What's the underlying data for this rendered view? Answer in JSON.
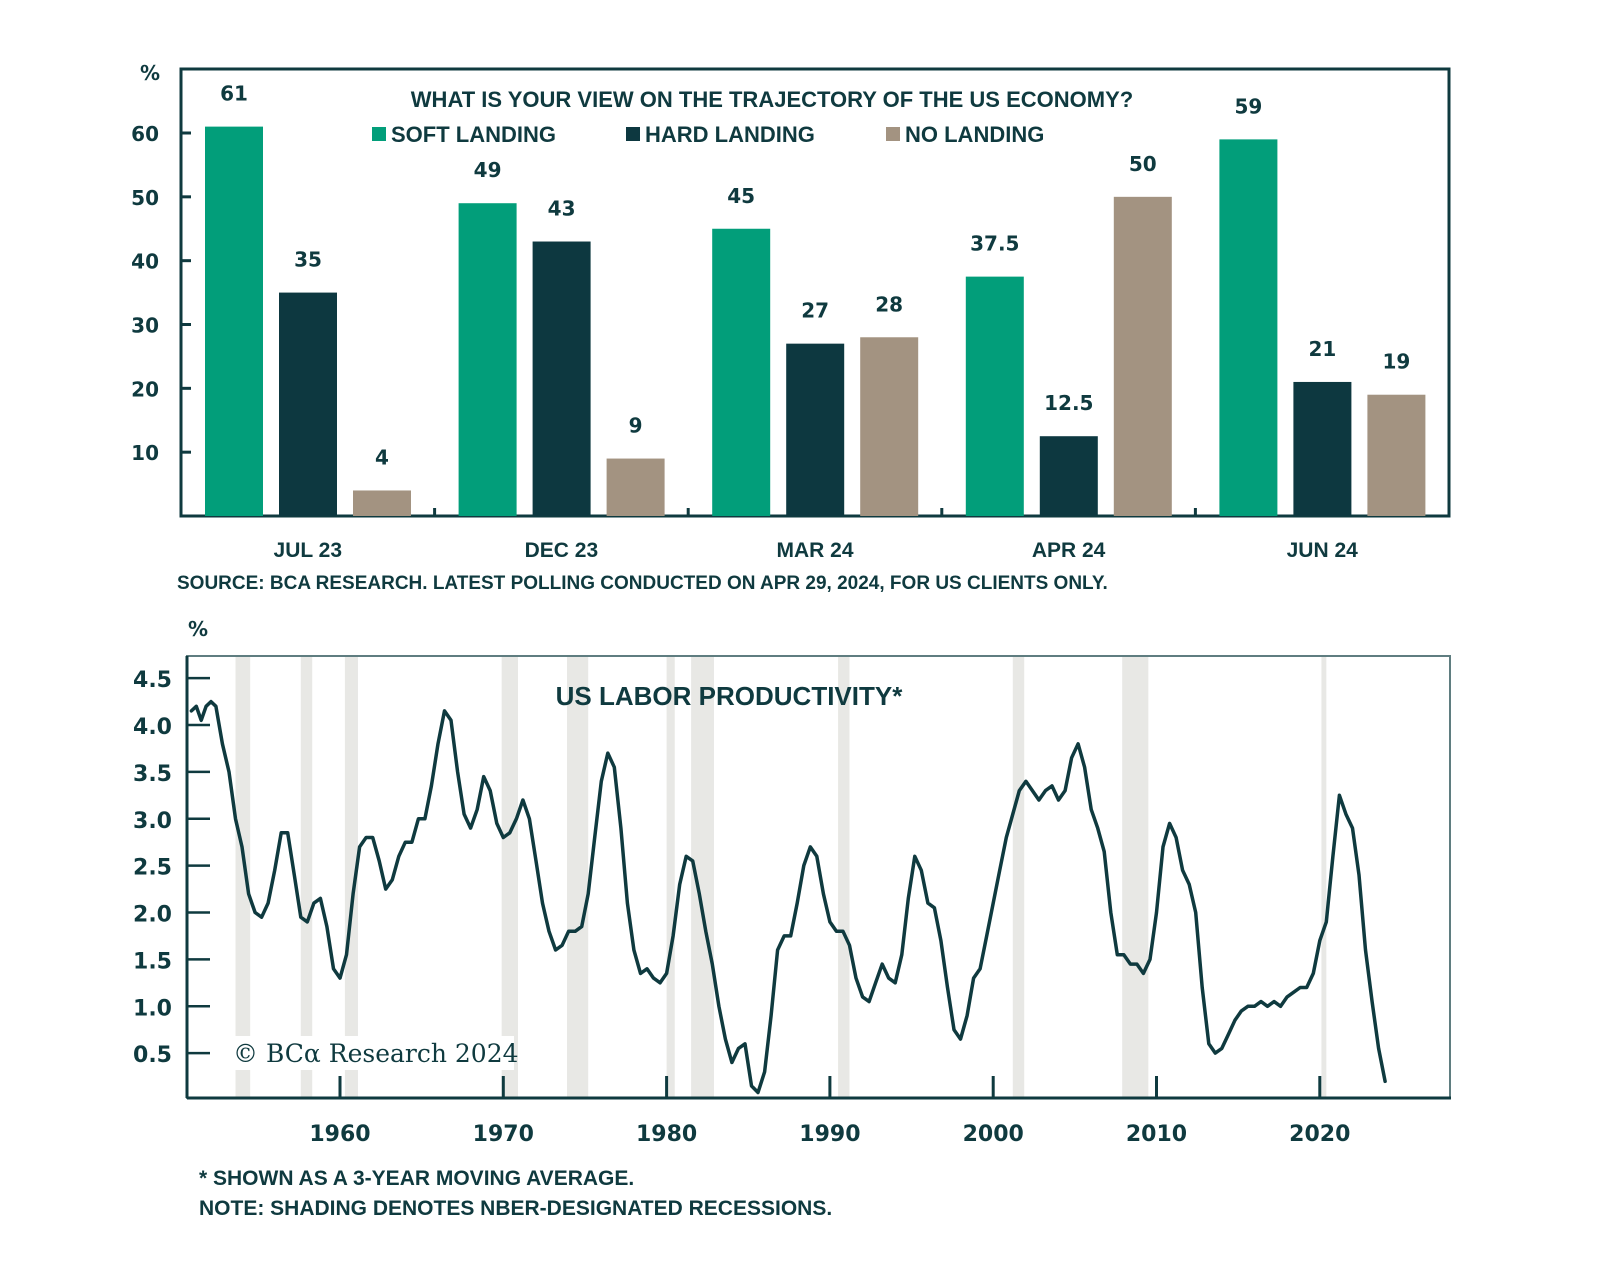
{
  "colors": {
    "soft": "#029e7a",
    "hard": "#0d3840",
    "no": "#a39381",
    "axis": "#0f3a3f",
    "line": "#0f3a3f",
    "recession": "#e8e8e5"
  },
  "chart_data": [
    {
      "type": "bar",
      "title": "WHAT IS YOUR VIEW ON THE TRAJECTORY OF THE US ECONOMY?",
      "ylabel": "%",
      "xlabel": "",
      "ylim": [
        0,
        70
      ],
      "yticks": [
        10,
        20,
        30,
        40,
        50,
        60
      ],
      "ytick_labels": [
        "10",
        "20",
        "30",
        "40",
        "50",
        "60"
      ],
      "categories": [
        "JUL 23",
        "DEC 23",
        "MAR 24",
        "APR 24",
        "JUN 24"
      ],
      "legend": [
        "SOFT LANDING",
        "HARD LANDING",
        "NO LANDING"
      ],
      "legend_placement": "top-center",
      "series": [
        {
          "name": "SOFT LANDING",
          "values": [
            61,
            49,
            45,
            37.5,
            59
          ],
          "labels": [
            "61",
            "49",
            "45",
            "37.5",
            "59"
          ]
        },
        {
          "name": "HARD LANDING",
          "values": [
            35,
            43,
            27,
            12.5,
            21
          ],
          "labels": [
            "35",
            "43",
            "27",
            "12.5",
            "21"
          ]
        },
        {
          "name": "NO LANDING",
          "values": [
            4,
            9,
            28,
            50,
            19
          ],
          "labels": [
            "4",
            "9",
            "28",
            "50",
            "19"
          ]
        }
      ],
      "source": "SOURCE: BCA RESEARCH. LATEST POLLING CONDUCTED ON APR 29, 2024, FOR US CLIENTS ONLY."
    },
    {
      "type": "line",
      "title": "US LABOR PRODUCTIVITY*",
      "ylabel": "%",
      "xlabel": "",
      "xlim": [
        1950.5,
        2028
      ],
      "ylim": [
        0,
        4.75
      ],
      "yticks": [
        0.5,
        1.0,
        1.5,
        2.0,
        2.5,
        3.0,
        3.5,
        4.0,
        4.5
      ],
      "ytick_labels": [
        "0.5",
        "1.0",
        "1.5",
        "2.0",
        "2.5",
        "3.0",
        "3.5",
        "4.0",
        "4.5"
      ],
      "xticks": [
        1960,
        1970,
        1980,
        1990,
        2000,
        2010,
        2020
      ],
      "xtick_labels": [
        "1960",
        "1970",
        "1980",
        "1990",
        "2000",
        "2010",
        "2020"
      ],
      "grid": false,
      "recessions": [
        [
          1953.6,
          1954.5
        ],
        [
          1957.6,
          1958.3
        ],
        [
          1960.3,
          1961.1
        ],
        [
          1969.9,
          1970.9
        ],
        [
          1973.9,
          1975.2
        ],
        [
          1980.0,
          1980.5
        ],
        [
          1981.5,
          1982.9
        ],
        [
          1990.5,
          1991.2
        ],
        [
          2001.2,
          2001.9
        ],
        [
          2007.9,
          2009.5
        ],
        [
          2020.1,
          2020.4
        ]
      ],
      "watermark": "© BCα Research 2024",
      "series": [
        {
          "name": "US LABOR PRODUCTIVITY (3-YEAR MOVING AVERAGE)",
          "x": [
            1950.9,
            1951.2,
            1951.5,
            1951.8,
            1952.1,
            1952.4,
            1952.8,
            1953.2,
            1953.6,
            1954.0,
            1954.4,
            1954.8,
            1955.2,
            1955.6,
            1956.0,
            1956.4,
            1956.8,
            1957.2,
            1957.6,
            1958.0,
            1958.4,
            1958.8,
            1959.2,
            1959.6,
            1960.0,
            1960.4,
            1960.8,
            1961.2,
            1961.6,
            1962.0,
            1962.4,
            1962.8,
            1963.2,
            1963.6,
            1964.0,
            1964.4,
            1964.8,
            1965.2,
            1965.6,
            1966.0,
            1966.4,
            1966.8,
            1967.2,
            1967.6,
            1968.0,
            1968.4,
            1968.8,
            1969.2,
            1969.6,
            1970.0,
            1970.4,
            1970.8,
            1971.2,
            1971.6,
            1972.0,
            1972.4,
            1972.8,
            1973.2,
            1973.6,
            1974.0,
            1974.4,
            1974.8,
            1975.2,
            1975.6,
            1976.0,
            1976.4,
            1976.8,
            1977.2,
            1977.6,
            1978.0,
            1978.4,
            1978.8,
            1979.2,
            1979.6,
            1980.0,
            1980.4,
            1980.8,
            1981.2,
            1981.6,
            1982.0,
            1982.4,
            1982.8,
            1983.2,
            1983.6,
            1984.0,
            1984.4,
            1984.8,
            1985.2,
            1985.6,
            1986.0,
            1986.4,
            1986.8,
            1987.2,
            1987.6,
            1988.0,
            1988.4,
            1988.8,
            1989.2,
            1989.6,
            1990.0,
            1990.4,
            1990.8,
            1991.2,
            1991.6,
            1992.0,
            1992.4,
            1992.8,
            1993.2,
            1993.6,
            1994.0,
            1994.4,
            1994.8,
            1995.2,
            1995.6,
            1996.0,
            1996.4,
            1996.8,
            1997.2,
            1997.6,
            1998.0,
            1998.4,
            1998.8,
            1999.2,
            1999.6,
            2000.0,
            2000.4,
            2000.8,
            2001.2,
            2001.6,
            2002.0,
            2002.4,
            2002.8,
            2003.2,
            2003.6,
            2004.0,
            2004.4,
            2004.8,
            2005.2,
            2005.6,
            2006.0,
            2006.4,
            2006.8,
            2007.2,
            2007.6,
            2008.0,
            2008.4,
            2008.8,
            2009.2,
            2009.6,
            2010.0,
            2010.4,
            2010.8,
            2011.2,
            2011.6,
            2012.0,
            2012.4,
            2012.8,
            2013.2,
            2013.6,
            2014.0,
            2014.4,
            2014.8,
            2015.2,
            2015.6,
            2016.0,
            2016.4,
            2016.8,
            2017.2,
            2017.6,
            2018.0,
            2018.4,
            2018.8,
            2019.2,
            2019.6,
            2020.0,
            2020.4,
            2020.8,
            2021.2,
            2021.6,
            2022.0,
            2022.4,
            2022.8,
            2023.2,
            2023.6,
            2024.0
          ],
          "y": [
            4.15,
            4.2,
            4.05,
            4.2,
            4.25,
            4.2,
            3.8,
            3.5,
            3.0,
            2.7,
            2.2,
            2.0,
            1.95,
            2.1,
            2.45,
            2.85,
            2.85,
            2.4,
            1.95,
            1.9,
            2.1,
            2.15,
            1.85,
            1.4,
            1.3,
            1.55,
            2.2,
            2.7,
            2.8,
            2.8,
            2.55,
            2.25,
            2.35,
            2.6,
            2.75,
            2.75,
            3.0,
            3.0,
            3.35,
            3.8,
            4.15,
            4.05,
            3.5,
            3.05,
            2.9,
            3.1,
            3.45,
            3.3,
            2.95,
            2.8,
            2.85,
            3.0,
            3.2,
            3.0,
            2.55,
            2.1,
            1.8,
            1.6,
            1.65,
            1.8,
            1.8,
            1.85,
            2.2,
            2.8,
            3.4,
            3.7,
            3.55,
            2.9,
            2.1,
            1.6,
            1.35,
            1.4,
            1.3,
            1.25,
            1.35,
            1.75,
            2.3,
            2.6,
            2.55,
            2.2,
            1.8,
            1.45,
            1.0,
            0.65,
            0.4,
            0.55,
            0.6,
            0.15,
            0.08,
            0.3,
            0.9,
            1.6,
            1.75,
            1.75,
            2.1,
            2.5,
            2.7,
            2.6,
            2.2,
            1.9,
            1.8,
            1.8,
            1.65,
            1.3,
            1.1,
            1.05,
            1.25,
            1.45,
            1.3,
            1.25,
            1.55,
            2.15,
            2.6,
            2.45,
            2.1,
            2.05,
            1.7,
            1.2,
            0.75,
            0.65,
            0.9,
            1.3,
            1.4,
            1.75,
            2.1,
            2.45,
            2.8,
            3.05,
            3.3,
            3.4,
            3.3,
            3.2,
            3.3,
            3.35,
            3.2,
            3.3,
            3.65,
            3.8,
            3.55,
            3.1,
            2.9,
            2.65,
            2.0,
            1.55,
            1.55,
            1.45,
            1.45,
            1.35,
            1.5,
            2.0,
            2.7,
            2.95,
            2.8,
            2.45,
            2.3,
            2.0,
            1.2,
            0.6,
            0.5,
            0.55,
            0.7,
            0.85,
            0.95,
            1.0,
            1.0,
            1.05,
            1.0,
            1.05,
            1.0,
            1.1,
            1.15,
            1.2,
            1.2,
            1.35,
            1.7,
            1.9,
            2.6,
            3.25,
            3.05,
            2.9,
            2.4,
            1.6,
            1.05,
            0.55,
            0.2
          ]
        }
      ],
      "footnotes": [
        "* SHOWN AS A 3-YEAR MOVING AVERAGE.",
        "NOTE: SHADING DENOTES NBER-DESIGNATED RECESSIONS."
      ]
    }
  ]
}
